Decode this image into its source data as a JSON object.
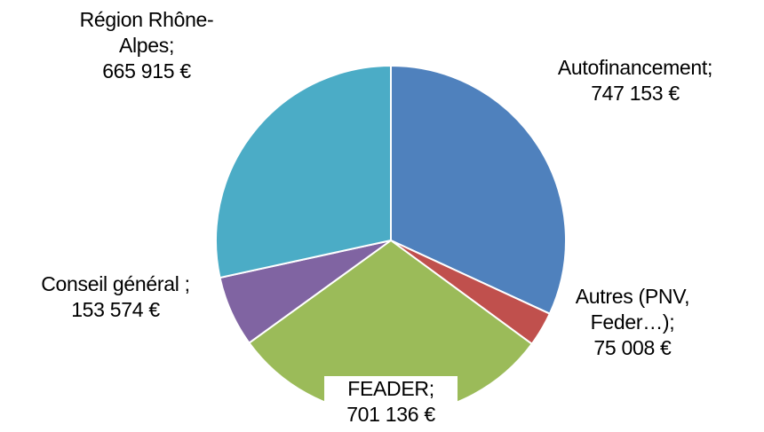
{
  "chart_data": {
    "type": "pie",
    "categories": [
      "Autofinancement;",
      "Autres (PNV, Feder…);",
      "FEADER;",
      "Conseil général ;",
      "Région Rhône-Alpes;"
    ],
    "values": [
      747153,
      75008,
      701136,
      153574,
      665915
    ],
    "value_labels": [
      "747 153 €",
      "75 008 €",
      "701 136 €",
      "153 574 €",
      "665 915 €"
    ],
    "colors": [
      "#4f81bd",
      "#c0504d",
      "#9bbb59",
      "#8064a2",
      "#4bacc6"
    ]
  }
}
